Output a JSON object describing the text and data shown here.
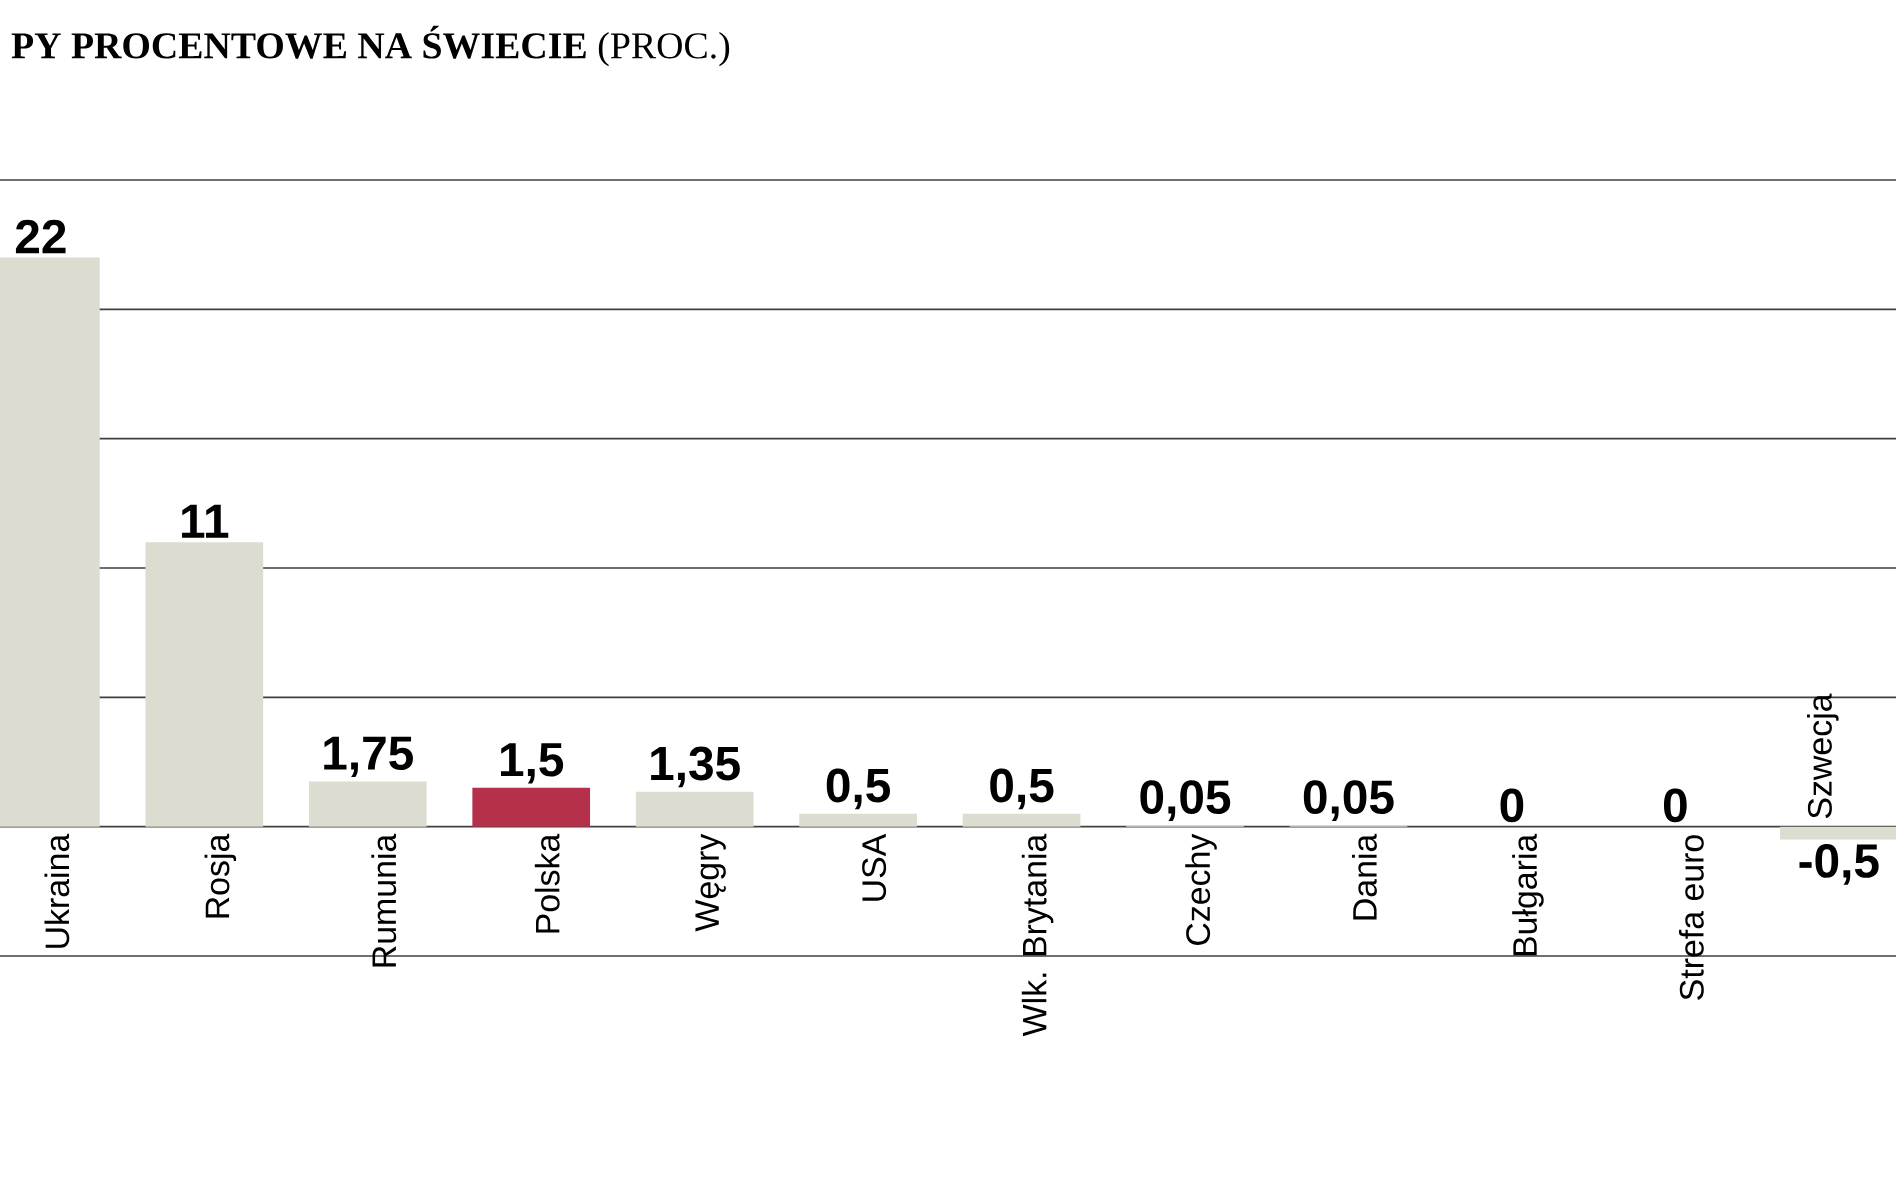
{
  "chart_data": {
    "type": "bar",
    "title": "**PY PROCENTOWE NA ŚWIECIE** (PROC.)",
    "categories": [
      "Ukraina",
      "Rosja",
      "Rumunia",
      "Polska",
      "Węgry",
      "USA",
      "Wlk. Brytania",
      "Czechy",
      "Dania",
      "Bułgaria",
      "Strefa euro",
      "Szwecja"
    ],
    "values": [
      22,
      11,
      1.75,
      1.5,
      1.35,
      0.5,
      0.5,
      0.05,
      0.05,
      0,
      0,
      -0.5
    ],
    "value_labels": [
      "22",
      "11",
      "1,75",
      "1,5",
      "1,35",
      "0,5",
      "0,5",
      "0,05",
      "0,05",
      "0",
      "0",
      "-0,5"
    ],
    "colors": [
      "#dcdcd0",
      "#dcdcd0",
      "#dcdcd0",
      "#b5304a",
      "#dcdcd0",
      "#dcdcd0",
      "#dcdcd0",
      "#dcdcd0",
      "#dcdcd0",
      "#dcdcd0",
      "#dcdcd0",
      "#dcdcd0"
    ],
    "ylim": [
      -5,
      25
    ],
    "yticks": [
      {
        "value": -5,
        "label": null
      },
      {
        "value": 0,
        "label": null
      },
      {
        "value": 5,
        "label": null
      },
      {
        "value": 10,
        "label": null
      },
      {
        "value": 15,
        "label": null
      },
      {
        "value": 20,
        "label": null
      },
      {
        "value": 25,
        "label": null
      }
    ],
    "grid": "y",
    "tick_labels": "x"
  }
}
